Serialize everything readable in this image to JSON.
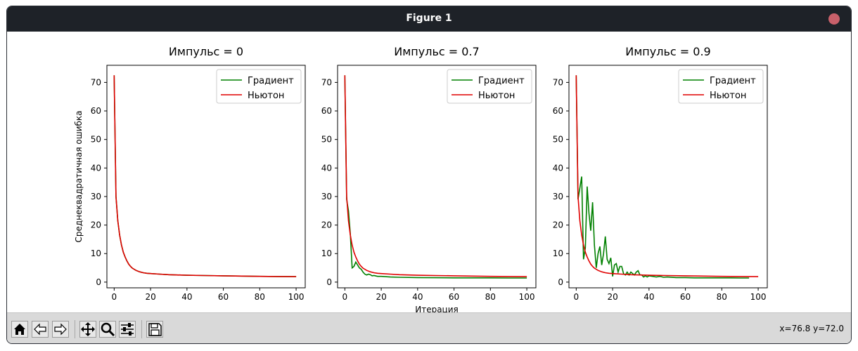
{
  "window": {
    "title": "Figure 1"
  },
  "toolbar": {
    "buttons": [
      {
        "name": "home-button",
        "icon": "home-icon"
      },
      {
        "name": "back-button",
        "icon": "arrow-left-icon"
      },
      {
        "name": "forward-button",
        "icon": "arrow-right-icon"
      },
      {
        "name": "pan-button",
        "icon": "move-icon"
      },
      {
        "name": "zoom-button",
        "icon": "magnifier-icon"
      },
      {
        "name": "configure-subplots-button",
        "icon": "sliders-icon"
      },
      {
        "name": "save-button",
        "icon": "floppy-disk-icon"
      }
    ],
    "coordinates": "x=76.8 y=72.0"
  },
  "colors": {
    "gradient": "#008000",
    "newton": "#e00000"
  },
  "chart_data": [
    {
      "type": "line",
      "title": "Импульс = 0",
      "xlabel": "",
      "ylabel": "Среднеквадратичная ошибка",
      "xlim": [
        -4,
        105
      ],
      "ylim": [
        -2,
        76
      ],
      "xticks": [
        0,
        20,
        40,
        60,
        80,
        100
      ],
      "yticks": [
        0,
        10,
        20,
        30,
        40,
        50,
        60,
        70
      ],
      "legend": "top-right",
      "series": [
        {
          "name": "Градиент",
          "color": "#008000",
          "x": [
            0,
            1,
            2,
            3,
            4,
            5,
            6,
            7,
            8,
            9,
            10,
            12,
            14,
            16,
            18,
            20,
            25,
            30,
            40,
            50,
            60,
            70,
            80,
            90,
            100
          ],
          "y": [
            72.5,
            30,
            21.5,
            16.5,
            13,
            10.5,
            8.8,
            7.4,
            6.3,
            5.5,
            4.9,
            4.1,
            3.6,
            3.3,
            3.1,
            3.0,
            2.8,
            2.6,
            2.4,
            2.3,
            2.2,
            2.1,
            2.0,
            1.95,
            1.9
          ]
        },
        {
          "name": "Ньютон",
          "color": "#e00000",
          "x": [
            0,
            1,
            2,
            3,
            4,
            5,
            6,
            7,
            8,
            9,
            10,
            12,
            14,
            16,
            18,
            20,
            25,
            30,
            40,
            50,
            60,
            70,
            80,
            90,
            100
          ],
          "y": [
            72.5,
            30,
            21.5,
            16.5,
            13,
            10.5,
            8.8,
            7.4,
            6.3,
            5.5,
            4.9,
            4.1,
            3.6,
            3.3,
            3.1,
            3.0,
            2.8,
            2.6,
            2.4,
            2.3,
            2.2,
            2.1,
            2.0,
            1.95,
            1.9
          ]
        }
      ]
    },
    {
      "type": "line",
      "title": "Импульс = 0.7",
      "xlabel": "Итерация",
      "ylabel": "",
      "xlim": [
        -4,
        105
      ],
      "ylim": [
        -2,
        76
      ],
      "xticks": [
        0,
        20,
        40,
        60,
        80,
        100
      ],
      "yticks": [
        0,
        10,
        20,
        30,
        40,
        50,
        60,
        70
      ],
      "legend": "top-right",
      "series": [
        {
          "name": "Градиент",
          "color": "#008000",
          "x": [
            0,
            1,
            2,
            3,
            4,
            5,
            6,
            7,
            8,
            9,
            10,
            11,
            12,
            13,
            14,
            15,
            16,
            18,
            20,
            25,
            30,
            40,
            50,
            60,
            70,
            80,
            90,
            100
          ],
          "y": [
            72.5,
            29,
            25,
            17,
            5,
            5.5,
            7,
            6,
            5,
            4.5,
            3.5,
            2.8,
            2.5,
            2.8,
            2.6,
            2.2,
            2.3,
            2.0,
            2.0,
            1.8,
            1.7,
            1.6,
            1.55,
            1.5,
            1.5,
            1.5,
            1.45,
            1.45
          ]
        },
        {
          "name": "Ньютон",
          "color": "#e00000",
          "x": [
            0,
            1,
            2,
            3,
            4,
            5,
            6,
            7,
            8,
            9,
            10,
            12,
            14,
            16,
            18,
            20,
            25,
            30,
            40,
            50,
            60,
            70,
            80,
            90,
            100
          ],
          "y": [
            72.5,
            30,
            21.5,
            16.5,
            13,
            10.5,
            8.8,
            7.4,
            6.3,
            5.5,
            4.9,
            4.1,
            3.6,
            3.3,
            3.1,
            3.0,
            2.8,
            2.6,
            2.4,
            2.3,
            2.2,
            2.1,
            2.0,
            1.95,
            1.9
          ]
        }
      ]
    },
    {
      "type": "line",
      "title": "Импульс = 0.9",
      "xlabel": "",
      "ylabel": "",
      "xlim": [
        -4,
        105
      ],
      "ylim": [
        -2,
        76
      ],
      "xticks": [
        0,
        20,
        40,
        60,
        80,
        100
      ],
      "yticks": [
        0,
        10,
        20,
        30,
        40,
        50,
        60,
        70
      ],
      "legend": "top-right",
      "series": [
        {
          "name": "Градиент",
          "color": "#008000",
          "x": [
            0,
            1,
            2,
            3,
            4,
            5,
            6,
            7,
            8,
            9,
            10,
            11,
            12,
            13,
            14,
            15,
            16,
            17,
            18,
            19,
            20,
            21,
            22,
            23,
            24,
            25,
            26,
            27,
            28,
            29,
            30,
            31,
            32,
            33,
            34,
            35,
            36,
            37,
            38,
            39,
            40,
            42,
            44,
            46,
            48,
            50,
            55,
            60,
            65,
            70,
            75,
            80,
            85,
            90,
            95
          ],
          "y": [
            72.5,
            29,
            33,
            37,
            8,
            12,
            33.5,
            24,
            18,
            28,
            13,
            5,
            10,
            12.5,
            6,
            10,
            16,
            8,
            6.5,
            8.5,
            2,
            6,
            6.5,
            3.5,
            5.5,
            5.5,
            3,
            2.5,
            3.5,
            2.5,
            3.5,
            3,
            2.5,
            3.5,
            4,
            2.5,
            2.5,
            1.8,
            2.2,
            1.8,
            2.2,
            2.0,
            1.8,
            2.0,
            1.7,
            1.8,
            1.6,
            1.6,
            1.5,
            1.5,
            1.5,
            1.5,
            1.5,
            1.45,
            1.45
          ]
        },
        {
          "name": "Ньютон",
          "color": "#e00000",
          "x": [
            0,
            1,
            2,
            3,
            4,
            5,
            6,
            7,
            8,
            9,
            10,
            12,
            14,
            16,
            18,
            20,
            25,
            30,
            40,
            50,
            60,
            70,
            80,
            90,
            100
          ],
          "y": [
            72.5,
            30,
            21.5,
            16.5,
            13,
            10.5,
            8.8,
            7.4,
            6.3,
            5.5,
            4.9,
            4.1,
            3.6,
            3.3,
            3.1,
            3.0,
            2.8,
            2.6,
            2.4,
            2.3,
            2.2,
            2.1,
            2.0,
            1.95,
            1.9
          ]
        }
      ]
    }
  ]
}
